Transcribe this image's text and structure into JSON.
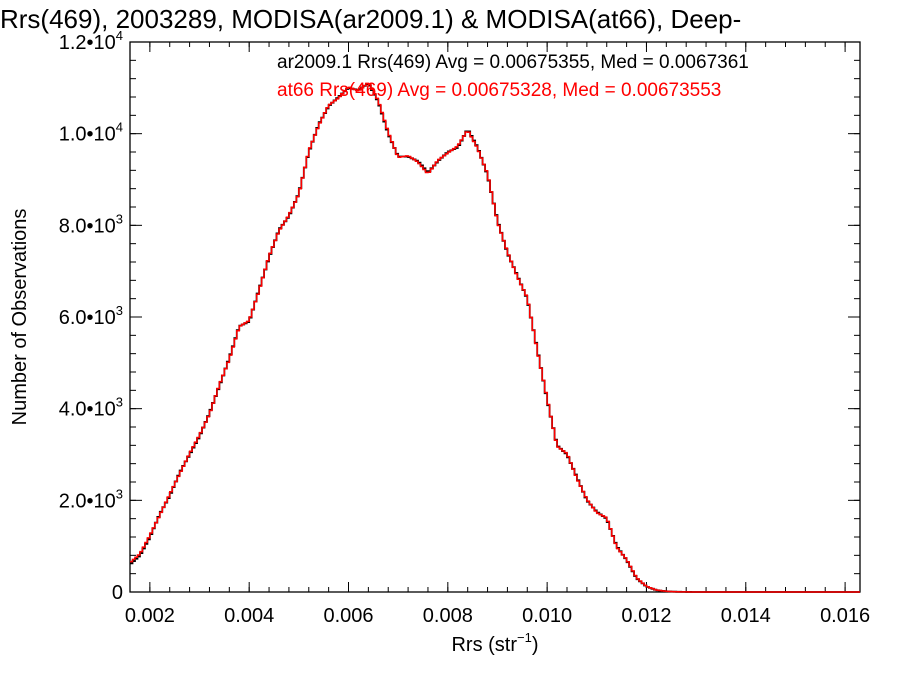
{
  "chart_data": {
    "type": "line",
    "title": "Rrs(469), 2003289, MODISA(ar2009.1) & MODISA(at66), Deep-",
    "xlabel": "Rrs (str",
    "xlabel_sup": "−1",
    "xlabel_suffix": ")",
    "ylabel": "Number of Observations",
    "xlim": [
      0.0016,
      0.0163
    ],
    "ylim": [
      0,
      12000
    ],
    "grid": false,
    "x_ticks": [
      {
        "value": 0.002,
        "label": "0.002"
      },
      {
        "value": 0.004,
        "label": "0.004"
      },
      {
        "value": 0.006,
        "label": "0.006"
      },
      {
        "value": 0.008,
        "label": "0.008"
      },
      {
        "value": 0.01,
        "label": "0.010"
      },
      {
        "value": 0.012,
        "label": "0.012"
      },
      {
        "value": 0.014,
        "label": "0.014"
      },
      {
        "value": 0.016,
        "label": "0.016"
      }
    ],
    "y_ticks": [
      {
        "value": 0,
        "mant": "0",
        "exp": ""
      },
      {
        "value": 2000,
        "mant": "2.0•10",
        "exp": "3"
      },
      {
        "value": 4000,
        "mant": "4.0•10",
        "exp": "3"
      },
      {
        "value": 6000,
        "mant": "6.0•10",
        "exp": "3"
      },
      {
        "value": 8000,
        "mant": "8.0•10",
        "exp": "3"
      },
      {
        "value": 10000,
        "mant": "1.0•10",
        "exp": "4"
      },
      {
        "value": 12000,
        "mant": "1.2•10",
        "exp": "4"
      }
    ],
    "x": [
      0.0016,
      0.0018,
      0.002,
      0.0022,
      0.0024,
      0.0026,
      0.0028,
      0.003,
      0.0032,
      0.0034,
      0.0036,
      0.0038,
      0.004,
      0.0042,
      0.0044,
      0.0046,
      0.0048,
      0.005,
      0.0052,
      0.0054,
      0.0056,
      0.0058,
      0.006,
      0.0062,
      0.0064,
      0.0066,
      0.0068,
      0.007,
      0.0072,
      0.0074,
      0.0076,
      0.0078,
      0.008,
      0.0082,
      0.0084,
      0.0086,
      0.0088,
      0.009,
      0.0092,
      0.0094,
      0.0096,
      0.0098,
      0.01,
      0.0102,
      0.0104,
      0.0106,
      0.0108,
      0.011,
      0.0112,
      0.0114,
      0.0116,
      0.0118,
      0.012,
      0.0122,
      0.0124,
      0.0126,
      0.0128,
      0.013,
      0.0135,
      0.014,
      0.015,
      0.0163
    ],
    "series": [
      {
        "name": "ar2009.1",
        "color": "#000000",
        "values": [
          600,
          800,
          1200,
          1700,
          2100,
          2600,
          3000,
          3400,
          3900,
          4500,
          5100,
          5800,
          5900,
          6600,
          7300,
          7900,
          8200,
          8700,
          9600,
          10200,
          10600,
          10800,
          11000,
          10950,
          11100,
          10700,
          10000,
          9500,
          9500,
          9400,
          9150,
          9400,
          9600,
          9700,
          10100,
          9700,
          9100,
          8100,
          7400,
          6900,
          6400,
          5300,
          4200,
          3200,
          3000,
          2500,
          2000,
          1750,
          1600,
          1000,
          700,
          300,
          120,
          40,
          15,
          5,
          2,
          0,
          0,
          0,
          0,
          0
        ]
      },
      {
        "name": "at66",
        "color": "#ff0000",
        "values": [
          640,
          830,
          1230,
          1680,
          2130,
          2580,
          3020,
          3420,
          3880,
          4520,
          5080,
          5790,
          5920,
          6580,
          7320,
          7880,
          8220,
          8680,
          9620,
          10180,
          10620,
          10780,
          11020,
          10930,
          11120,
          10720,
          10030,
          9480,
          9520,
          9380,
          9120,
          9420,
          9580,
          9730,
          10080,
          9680,
          9120,
          8080,
          7420,
          6880,
          6420,
          5280,
          4220,
          3180,
          3020,
          2480,
          2020,
          1730,
          1620,
          980,
          710,
          310,
          125,
          42,
          16,
          5,
          2,
          0,
          0,
          0,
          0,
          0
        ]
      }
    ],
    "annotations": [
      {
        "text": "ar2009.1 Rrs(469) Avg = 0.00675355, Med = 0.0067361",
        "color": "#000000"
      },
      {
        "text": "at66 Rrs(469) Avg = 0.00675328, Med = 0.00673553",
        "color": "#ff0000"
      }
    ]
  }
}
